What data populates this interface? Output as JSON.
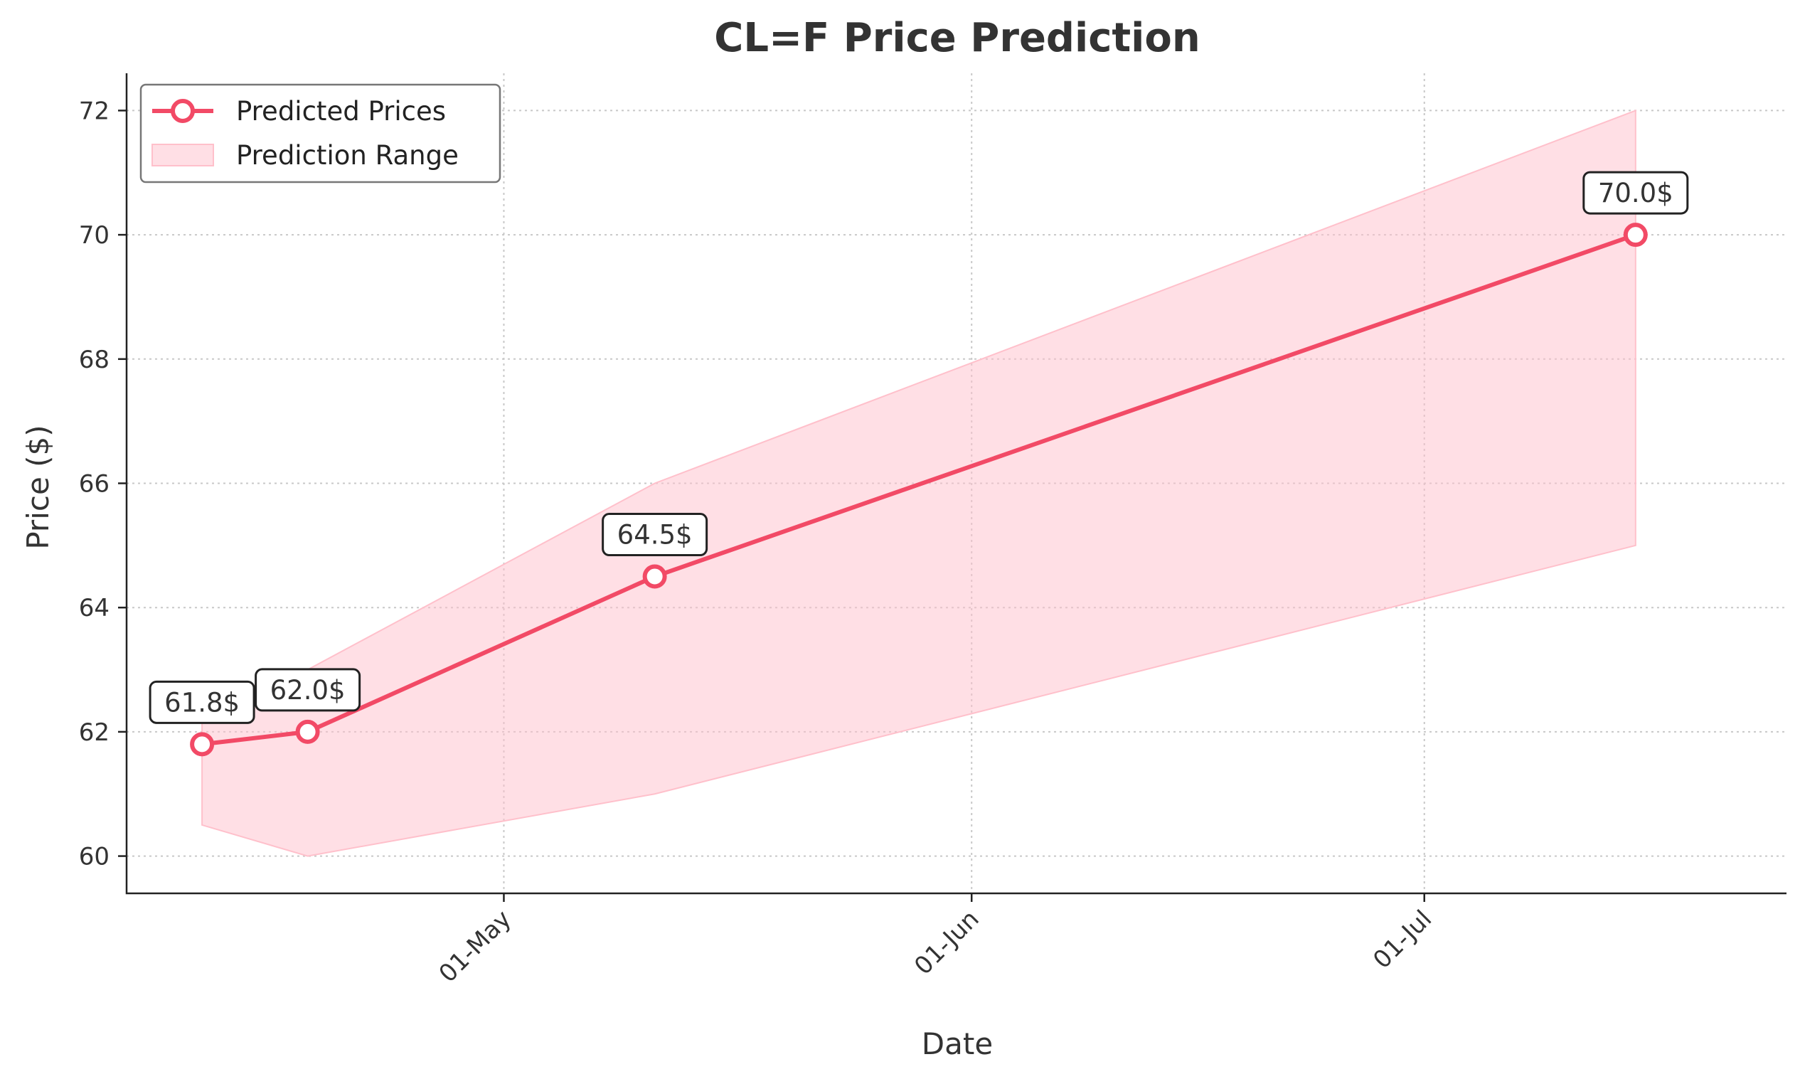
{
  "chart_data": {
    "type": "line",
    "title": "CL=F Price Prediction",
    "xlabel": "Date",
    "ylabel": "Price ($)",
    "x_dates": [
      "04-11",
      "04-18",
      "05-11",
      "07-15"
    ],
    "x_ticks": [
      {
        "date": "05-01",
        "label": "01-May"
      },
      {
        "date": "06-01",
        "label": "01-Jun"
      },
      {
        "date": "07-01",
        "label": "01-Jul"
      }
    ],
    "y_ticks": [
      60,
      62,
      64,
      66,
      68,
      70,
      72
    ],
    "ylim": [
      59.4,
      72.6
    ],
    "xlim_dates": [
      "04-06",
      "07-25"
    ],
    "grid": true,
    "legend_position": "top-left",
    "series": [
      {
        "name": "Predicted Prices",
        "values": [
          61.8,
          62.0,
          64.5,
          70.0
        ],
        "color": "#f24a66",
        "marker": "circle-open"
      }
    ],
    "range": {
      "name": "Prediction Range",
      "upper": [
        62.5,
        63.0,
        66.0,
        72.0
      ],
      "lower": [
        60.5,
        60.0,
        61.0,
        65.0
      ],
      "color": "#ffc0cb"
    },
    "data_labels": [
      "61.8$",
      "62.0$",
      "64.5$",
      "70.0$"
    ]
  }
}
